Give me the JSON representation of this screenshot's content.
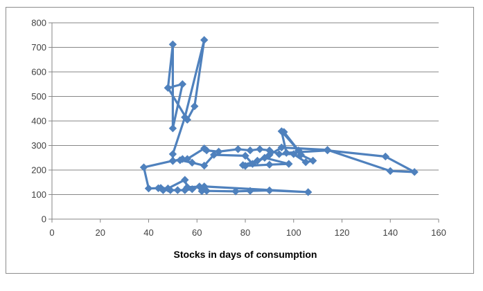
{
  "chart_data": {
    "type": "line",
    "title": "",
    "xlabel": "Stocks in days of consumption",
    "ylabel": "",
    "xlim": [
      0,
      160
    ],
    "ylim": [
      0,
      800
    ],
    "xticks": [
      0,
      20,
      40,
      60,
      80,
      100,
      120,
      140,
      160
    ],
    "yticks": [
      0,
      100,
      200,
      300,
      400,
      500,
      600,
      700,
      800
    ],
    "grid": "horizontal",
    "legend": "none",
    "series_color": "#4f81bd",
    "series": [
      {
        "x": [
          48,
          50,
          50,
          54,
          48,
          56,
          59,
          63,
          55,
          50,
          50,
          54,
          56,
          63,
          64,
          69,
          77,
          82,
          86,
          90,
          94,
          100,
          105,
          108,
          103,
          96,
          102,
          95,
          97,
          114,
          138,
          150,
          140,
          114,
          95,
          90,
          85,
          79,
          80,
          90,
          98,
          88,
          83,
          80,
          67,
          63,
          58,
          53,
          50,
          38,
          40,
          44,
          46,
          49,
          52,
          55,
          58,
          61,
          62,
          64,
          76,
          82,
          90,
          106,
          63,
          56,
          55,
          48,
          45
        ],
        "y": [
          535,
          712,
          370,
          550,
          535,
          405,
          460,
          730,
          415,
          265,
          237,
          245,
          245,
          288,
          280,
          275,
          285,
          280,
          285,
          280,
          265,
          265,
          232,
          238,
          262,
          355,
          280,
          358,
          270,
          280,
          255,
          192,
          196,
          282,
          292,
          262,
          238,
          220,
          217,
          222,
          225,
          250,
          225,
          258,
          262,
          218,
          230,
          240,
          238,
          211,
          125,
          126,
          118,
          118,
          118,
          118,
          122,
          133,
          114,
          115,
          113,
          115,
          117,
          110,
          133,
          130,
          160,
          125,
          127
        ]
      }
    ]
  }
}
